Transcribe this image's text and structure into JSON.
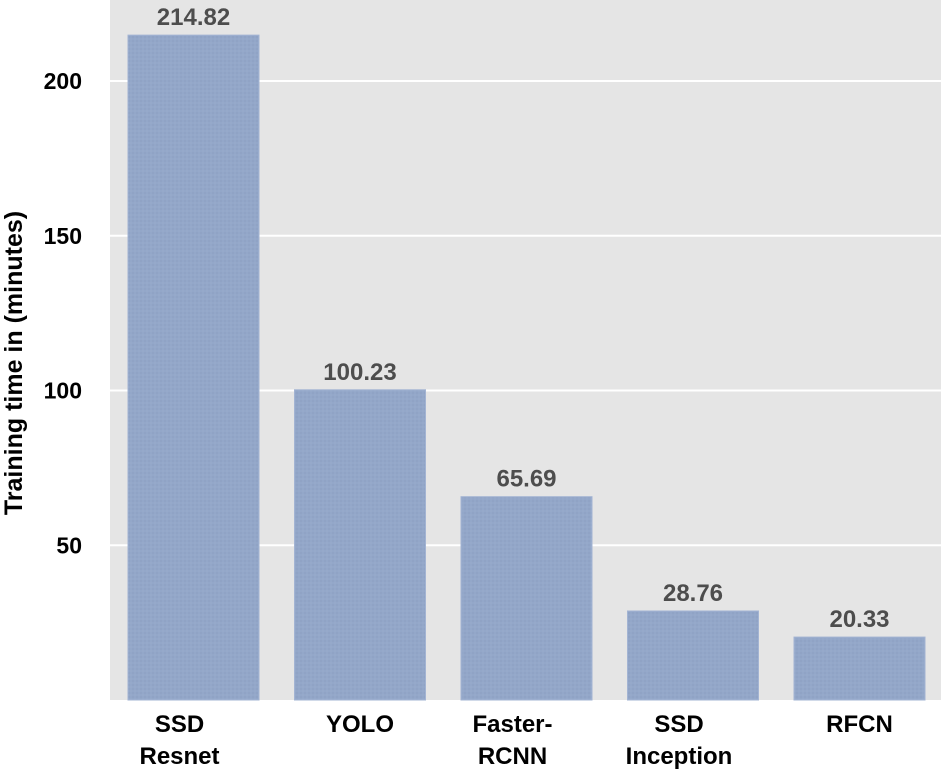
{
  "chart_data": {
    "type": "bar",
    "categories": [
      [
        "SSD",
        "Resnet"
      ],
      [
        "YOLO"
      ],
      [
        "Faster-",
        "RCNN"
      ],
      [
        "SSD",
        "Inception"
      ],
      [
        "RFCN"
      ]
    ],
    "values": [
      214.82,
      100.23,
      65.69,
      28.76,
      20.33
    ],
    "data_labels": [
      "214.82",
      "100.23",
      "65.69",
      "28.76",
      "20.33"
    ],
    "ylabel": "Training time in (minutes)",
    "yticks": [
      50,
      100,
      150,
      200
    ],
    "ylim": [
      0,
      223
    ],
    "grid": true,
    "colors": {
      "bar": "#91a5c8",
      "panel": "#e5e5e5",
      "grid": "#ffffff",
      "data_label": "#4d4d4d"
    }
  }
}
